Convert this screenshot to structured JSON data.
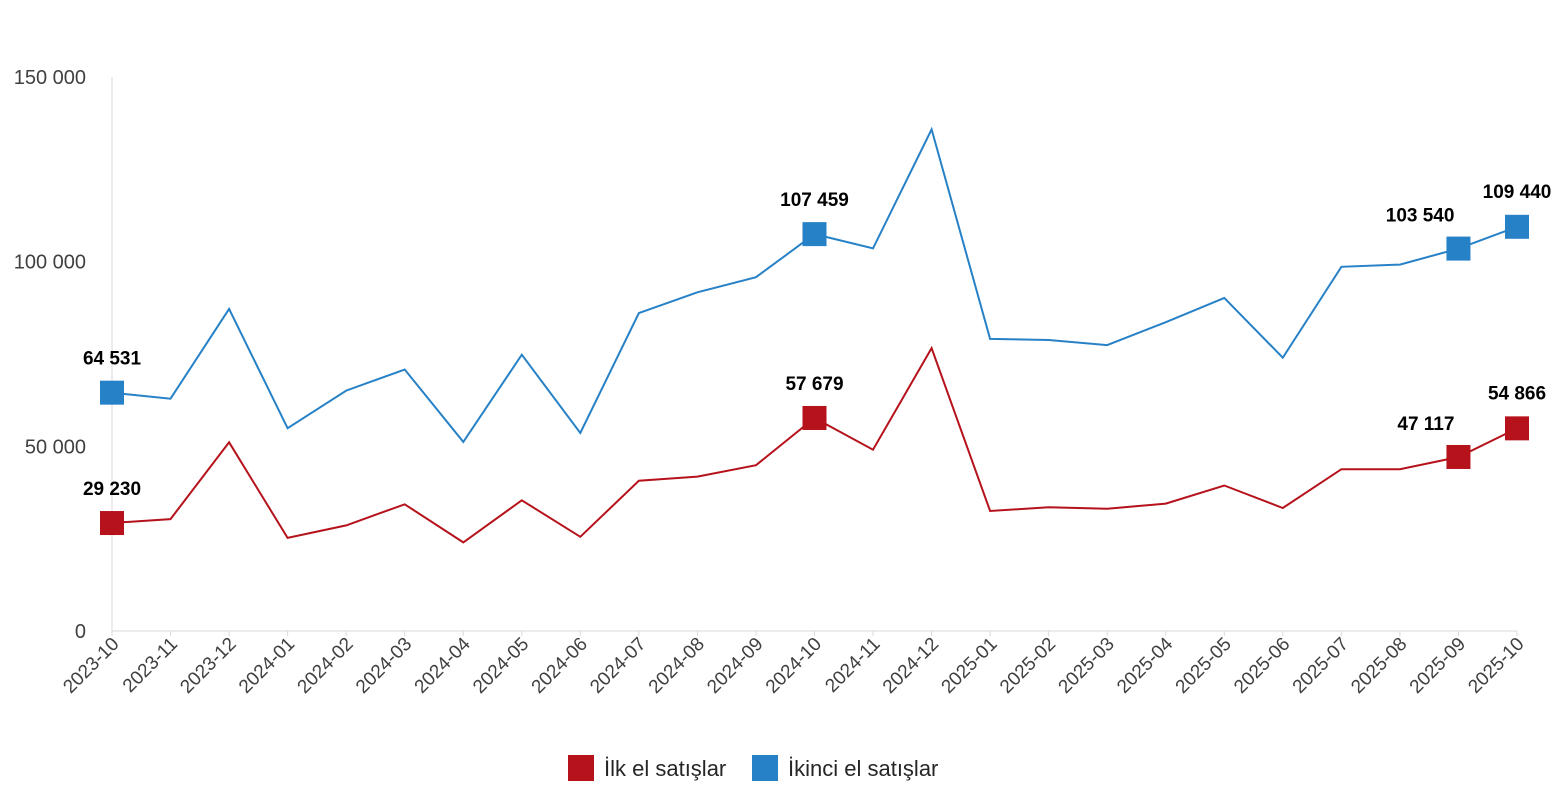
{
  "chart_data": {
    "type": "line",
    "categories": [
      "2023-10",
      "2023-11",
      "2023-12",
      "2024-01",
      "2024-02",
      "2024-03",
      "2024-04",
      "2024-05",
      "2024-06",
      "2024-07",
      "2024-08",
      "2024-09",
      "2024-10",
      "2024-11",
      "2024-12",
      "2025-01",
      "2025-02",
      "2025-03",
      "2025-04",
      "2025-05",
      "2025-06",
      "2025-07",
      "2025-08",
      "2025-09",
      "2025-10"
    ],
    "series": [
      {
        "name": "İlk el satışlar",
        "color": "#b5121b",
        "values": [
          29230,
          30300,
          51100,
          25200,
          28600,
          34300,
          24000,
          35400,
          25500,
          40700,
          41800,
          44900,
          57679,
          49100,
          76600,
          32500,
          33500,
          33100,
          34500,
          39400,
          33300,
          43800,
          43800,
          47117,
          54866
        ],
        "labels": [
          {
            "index": 0,
            "text": "29 230"
          },
          {
            "index": 12,
            "text": "57 679"
          },
          {
            "index": 23,
            "text": "47 117"
          },
          {
            "index": 24,
            "text": "54 866"
          }
        ]
      },
      {
        "name": "İkinci el satışlar",
        "color": "#2781c6",
        "values": [
          64531,
          62900,
          87200,
          54900,
          65100,
          70800,
          51200,
          74800,
          53600,
          86100,
          91700,
          95800,
          107459,
          103600,
          135800,
          79100,
          78800,
          77400,
          83600,
          90200,
          74000,
          98600,
          99200,
          103540,
          109440
        ],
        "labels": [
          {
            "index": 0,
            "text": "64 531"
          },
          {
            "index": 12,
            "text": "107 459"
          },
          {
            "index": 23,
            "text": "103 540"
          },
          {
            "index": 24,
            "text": "109 440"
          }
        ]
      }
    ],
    "marker_indices": [
      0,
      12,
      23,
      24
    ],
    "ylim": [
      0,
      150000
    ],
    "yticks": [
      {
        "value": 0,
        "label": "0"
      },
      {
        "value": 50000,
        "label": "50 000"
      },
      {
        "value": 100000,
        "label": "100 000"
      },
      {
        "value": 150000,
        "label": "150 000"
      }
    ],
    "grid": false,
    "legend_position": "bottom",
    "title": "",
    "xlabel": "",
    "ylabel": ""
  }
}
